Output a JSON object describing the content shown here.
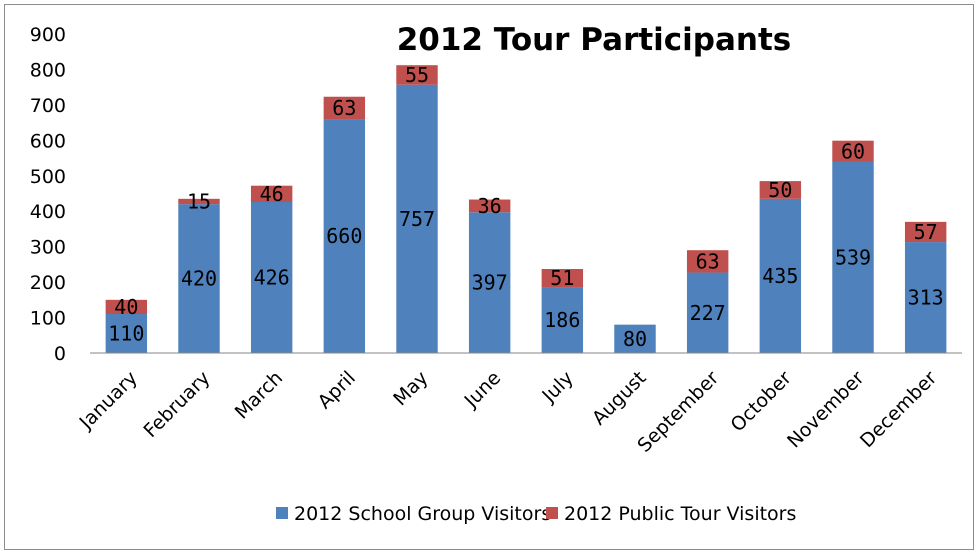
{
  "chart_data": {
    "type": "bar",
    "stacked": true,
    "title": "2012 Tour Participants",
    "categories": [
      "January",
      "February",
      "March",
      "April",
      "May",
      "June",
      "July",
      "August",
      "September",
      "October",
      "November",
      "December"
    ],
    "series": [
      {
        "name": "2012 School Group Visitors",
        "color": "#4f81bd",
        "values": [
          110,
          420,
          426,
          660,
          757,
          397,
          186,
          80,
          227,
          435,
          539,
          313
        ]
      },
      {
        "name": "2012 Public Tour Visitors",
        "color": "#c0504d",
        "values": [
          40,
          15,
          46,
          63,
          55,
          36,
          51,
          0,
          63,
          50,
          60,
          57
        ]
      }
    ],
    "data_labels": [
      [
        "110",
        "420",
        "426",
        "660",
        "757",
        "397",
        "186",
        "80",
        "227",
        "435",
        "539",
        "313"
      ],
      [
        "40",
        "15",
        "46",
        "63",
        "55",
        "36",
        "51",
        "",
        "63",
        "50",
        "60",
        "57"
      ]
    ],
    "yticks": [
      "0",
      "100",
      "200",
      "300",
      "400",
      "500",
      "600",
      "700",
      "800",
      "900"
    ],
    "ylim": [
      0,
      900
    ],
    "grid": false,
    "legend_position": "bottom"
  }
}
